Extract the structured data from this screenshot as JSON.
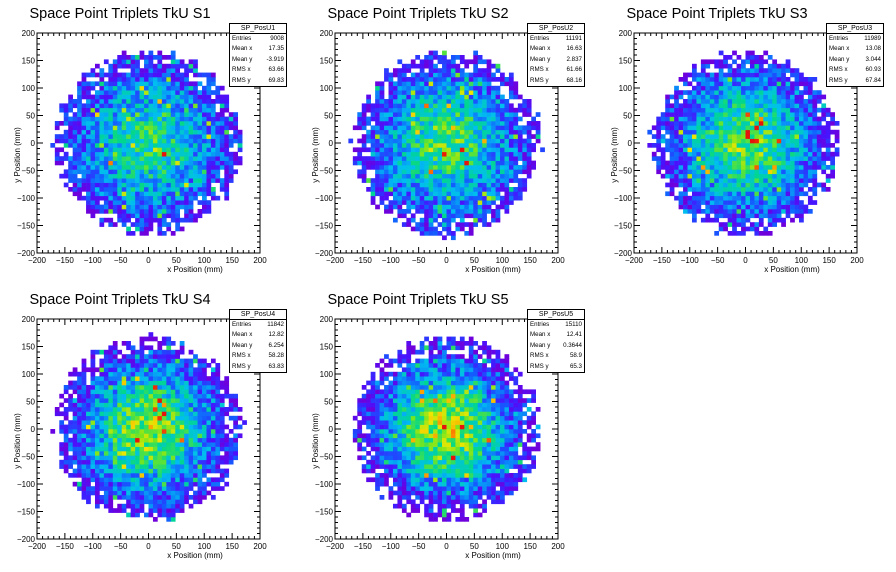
{
  "chart_data": [
    {
      "type": "heatmap",
      "title": "Space Point Triplets TkU S1",
      "xlabel": "x Position (mm)",
      "ylabel": "y Position (mm)",
      "xlim": [
        -200,
        200
      ],
      "ylim": [
        -200,
        200
      ],
      "xticks": [
        "−200",
        "−150",
        "−100",
        "−50",
        "0",
        "50",
        "100",
        "150",
        "200"
      ],
      "yticks": [
        "200",
        "150",
        "100",
        "50",
        "0",
        "−50",
        "−100",
        "−150",
        "−200"
      ],
      "colormap": "rainbow",
      "disk_center": [
        0,
        0
      ],
      "disk_radius": 160,
      "stats": {
        "name": "SP_PosU1",
        "rows": [
          {
            "label": "Entries",
            "value": "9008"
          },
          {
            "label": "Mean x",
            "value": "17.35"
          },
          {
            "label": "Mean y",
            "value": "-3.919"
          },
          {
            "label": "RMS x",
            "value": "63.66"
          },
          {
            "label": "RMS y",
            "value": "69.83"
          }
        ]
      }
    },
    {
      "type": "heatmap",
      "title": "Space Point Triplets TkU S2",
      "xlabel": "x Position (mm)",
      "ylabel": "y Position (mm)",
      "xlim": [
        -200,
        200
      ],
      "ylim": [
        -200,
        200
      ],
      "xticks": [
        "−200",
        "−150",
        "−100",
        "−50",
        "0",
        "50",
        "100",
        "150",
        "200"
      ],
      "yticks": [
        "200",
        "150",
        "100",
        "50",
        "0",
        "−50",
        "−100",
        "−150",
        "−200"
      ],
      "colormap": "rainbow",
      "disk_center": [
        0,
        0
      ],
      "disk_radius": 160,
      "stats": {
        "name": "SP_PosU2",
        "rows": [
          {
            "label": "Entries",
            "value": "11191"
          },
          {
            "label": "Mean x",
            "value": "16.63"
          },
          {
            "label": "Mean y",
            "value": "2.837"
          },
          {
            "label": "RMS x",
            "value": "61.66"
          },
          {
            "label": "RMS y",
            "value": "68.16"
          }
        ]
      }
    },
    {
      "type": "heatmap",
      "title": "Space Point Triplets TkU S3",
      "xlabel": "x Position (mm)",
      "ylabel": "y Position (mm)",
      "xlim": [
        -200,
        200
      ],
      "ylim": [
        -200,
        200
      ],
      "xticks": [
        "−200",
        "−150",
        "−100",
        "−50",
        "0",
        "50",
        "100",
        "150",
        "200"
      ],
      "yticks": [
        "200",
        "150",
        "100",
        "50",
        "0",
        "−50",
        "−100",
        "−150",
        "−200"
      ],
      "colormap": "rainbow",
      "disk_center": [
        0,
        0
      ],
      "disk_radius": 160,
      "stats": {
        "name": "SP_PosU3",
        "rows": [
          {
            "label": "Entries",
            "value": "11989"
          },
          {
            "label": "Mean x",
            "value": "13.08"
          },
          {
            "label": "Mean y",
            "value": "3.044"
          },
          {
            "label": "RMS x",
            "value": "60.93"
          },
          {
            "label": "RMS y",
            "value": "67.84"
          }
        ]
      }
    },
    {
      "type": "heatmap",
      "title": "Space Point Triplets TkU S4",
      "xlabel": "x Position (mm)",
      "ylabel": "y Position (mm)",
      "xlim": [
        -200,
        200
      ],
      "ylim": [
        -200,
        200
      ],
      "xticks": [
        "−200",
        "−150",
        "−100",
        "−50",
        "0",
        "50",
        "100",
        "150",
        "200"
      ],
      "yticks": [
        "200",
        "150",
        "100",
        "50",
        "0",
        "−50",
        "−100",
        "−150",
        "−200"
      ],
      "colormap": "rainbow",
      "disk_center": [
        0,
        0
      ],
      "disk_radius": 160,
      "stats": {
        "name": "SP_PosU4",
        "rows": [
          {
            "label": "Entries",
            "value": "11842"
          },
          {
            "label": "Mean x",
            "value": "12.82"
          },
          {
            "label": "Mean y",
            "value": "6.254"
          },
          {
            "label": "RMS x",
            "value": "58.28"
          },
          {
            "label": "RMS y",
            "value": "63.83"
          }
        ]
      }
    },
    {
      "type": "heatmap",
      "title": "Space Point Triplets TkU S5",
      "xlabel": "x Position (mm)",
      "ylabel": "y Position (mm)",
      "xlim": [
        -200,
        200
      ],
      "ylim": [
        -200,
        200
      ],
      "xticks": [
        "−200",
        "−150",
        "−100",
        "−50",
        "0",
        "50",
        "100",
        "150",
        "200"
      ],
      "yticks": [
        "200",
        "150",
        "100",
        "50",
        "0",
        "−50",
        "−100",
        "−150",
        "−200"
      ],
      "colormap": "rainbow",
      "disk_center": [
        0,
        0
      ],
      "disk_radius": 160,
      "stats": {
        "name": "SP_PosU5",
        "rows": [
          {
            "label": "Entries",
            "value": "15110"
          },
          {
            "label": "Mean x",
            "value": "12.41"
          },
          {
            "label": "Mean y",
            "value": "0.3644"
          },
          {
            "label": "RMS x",
            "value": "58.9"
          },
          {
            "label": "RMS y",
            "value": "65.3"
          }
        ]
      }
    }
  ]
}
